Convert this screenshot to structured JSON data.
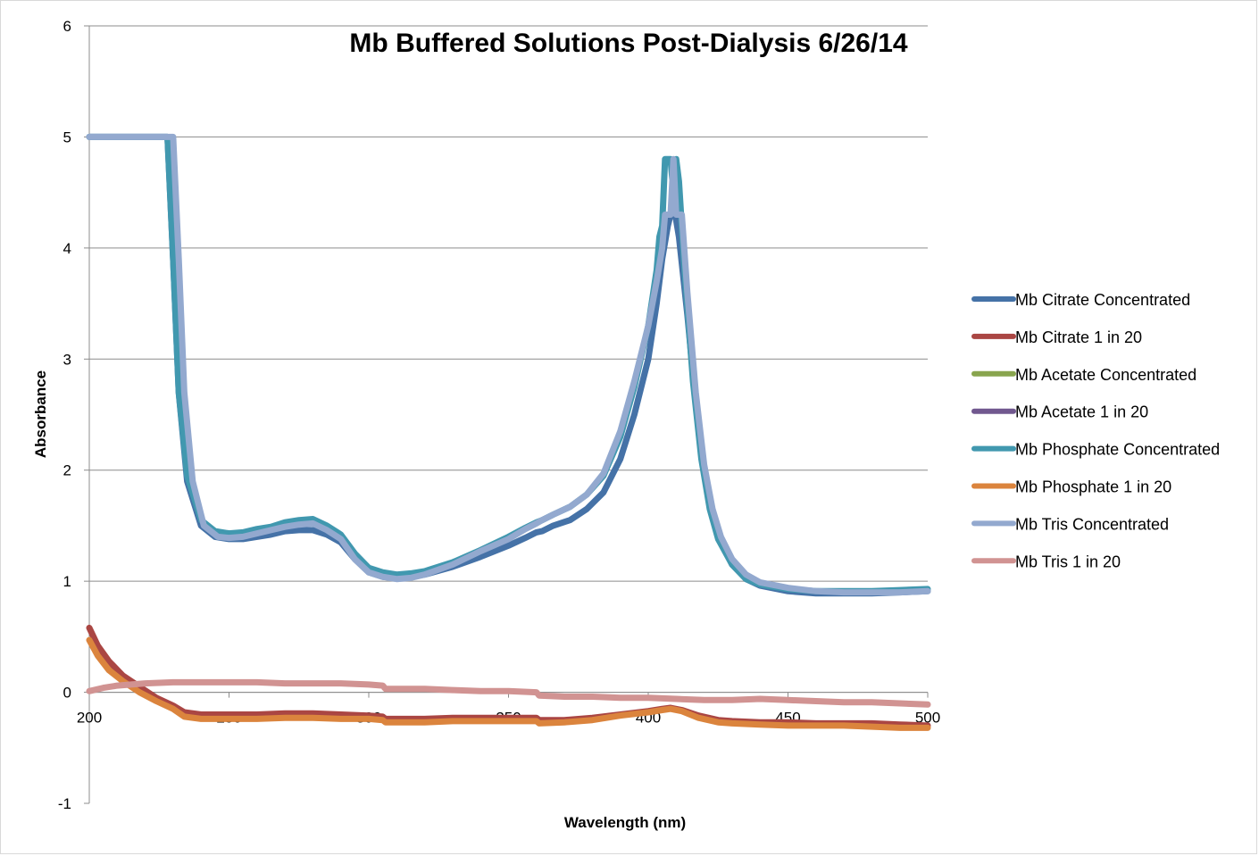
{
  "chart_data": {
    "type": "line",
    "title": "Mb Buffered Solutions Post-Dialysis 6/26/14",
    "xlabel": "Wavelength (nm)",
    "ylabel": "Absorbance",
    "xlim": [
      200,
      500
    ],
    "ylim": [
      -1,
      6
    ],
    "xticks": [
      200,
      250,
      300,
      350,
      400,
      450,
      500
    ],
    "yticks": [
      -1,
      0,
      1,
      2,
      3,
      4,
      5,
      6
    ],
    "grid": true,
    "legend": "right",
    "series": [
      {
        "name": "Mb Citrate Concentrated",
        "color": "#4572A7",
        "points": [
          [
            200,
            5
          ],
          [
            228,
            5
          ],
          [
            230,
            3.9
          ],
          [
            232,
            2.7
          ],
          [
            235,
            1.9
          ],
          [
            240,
            1.5
          ],
          [
            245,
            1.4
          ],
          [
            250,
            1.38
          ],
          [
            255,
            1.38
          ],
          [
            260,
            1.4
          ],
          [
            265,
            1.42
          ],
          [
            270,
            1.45
          ],
          [
            275,
            1.46
          ],
          [
            280,
            1.46
          ],
          [
            285,
            1.42
          ],
          [
            290,
            1.35
          ],
          [
            295,
            1.2
          ],
          [
            300,
            1.08
          ],
          [
            305,
            1.04
          ],
          [
            310,
            1.03
          ],
          [
            315,
            1.04
          ],
          [
            320,
            1.06
          ],
          [
            330,
            1.13
          ],
          [
            340,
            1.22
          ],
          [
            350,
            1.32
          ],
          [
            356,
            1.39
          ],
          [
            360,
            1.44
          ],
          [
            362,
            1.45
          ],
          [
            366,
            1.5
          ],
          [
            372,
            1.55
          ],
          [
            378,
            1.65
          ],
          [
            384,
            1.8
          ],
          [
            390,
            2.1
          ],
          [
            395,
            2.5
          ],
          [
            400,
            3.0
          ],
          [
            403,
            3.5
          ],
          [
            405,
            3.9
          ],
          [
            407,
            4.2
          ],
          [
            409,
            4.4
          ],
          [
            411,
            4.1
          ],
          [
            414,
            3.4
          ],
          [
            417,
            2.6
          ],
          [
            420,
            2.0
          ],
          [
            423,
            1.6
          ],
          [
            426,
            1.35
          ],
          [
            430,
            1.15
          ],
          [
            435,
            1.02
          ],
          [
            440,
            0.96
          ],
          [
            450,
            0.91
          ],
          [
            460,
            0.89
          ],
          [
            470,
            0.89
          ],
          [
            480,
            0.89
          ],
          [
            490,
            0.9
          ],
          [
            500,
            0.91
          ]
        ]
      },
      {
        "name": "Mb Citrate 1 in 20",
        "color": "#AA4643",
        "points": [
          [
            200,
            0.58
          ],
          [
            203,
            0.42
          ],
          [
            207,
            0.28
          ],
          [
            212,
            0.15
          ],
          [
            218,
            0.05
          ],
          [
            224,
            -0.05
          ],
          [
            230,
            -0.12
          ],
          [
            234,
            -0.18
          ],
          [
            240,
            -0.2
          ],
          [
            250,
            -0.2
          ],
          [
            260,
            -0.2
          ],
          [
            270,
            -0.19
          ],
          [
            280,
            -0.19
          ],
          [
            290,
            -0.2
          ],
          [
            300,
            -0.21
          ],
          [
            305,
            -0.22
          ],
          [
            306,
            -0.24
          ],
          [
            320,
            -0.24
          ],
          [
            330,
            -0.23
          ],
          [
            340,
            -0.23
          ],
          [
            350,
            -0.23
          ],
          [
            360,
            -0.23
          ],
          [
            361,
            -0.25
          ],
          [
            370,
            -0.25
          ],
          [
            380,
            -0.23
          ],
          [
            390,
            -0.2
          ],
          [
            400,
            -0.17
          ],
          [
            405,
            -0.15
          ],
          [
            408,
            -0.14
          ],
          [
            412,
            -0.16
          ],
          [
            418,
            -0.21
          ],
          [
            425,
            -0.25
          ],
          [
            430,
            -0.26
          ],
          [
            440,
            -0.27
          ],
          [
            450,
            -0.27
          ],
          [
            460,
            -0.28
          ],
          [
            470,
            -0.28
          ],
          [
            480,
            -0.28
          ],
          [
            490,
            -0.29
          ],
          [
            500,
            -0.3
          ]
        ]
      },
      {
        "name": "Mb Acetate Concentrated",
        "color": "#89A54E",
        "points": []
      },
      {
        "name": "Mb Acetate 1 in 20",
        "color": "#71588F",
        "points": []
      },
      {
        "name": "Mb Phosphate Concentrated",
        "color": "#4198AF",
        "points": [
          [
            200,
            5
          ],
          [
            228,
            5
          ],
          [
            230,
            3.9
          ],
          [
            232,
            2.7
          ],
          [
            235,
            1.95
          ],
          [
            240,
            1.55
          ],
          [
            245,
            1.45
          ],
          [
            250,
            1.43
          ],
          [
            255,
            1.44
          ],
          [
            260,
            1.47
          ],
          [
            265,
            1.49
          ],
          [
            270,
            1.53
          ],
          [
            275,
            1.55
          ],
          [
            280,
            1.56
          ],
          [
            285,
            1.5
          ],
          [
            290,
            1.42
          ],
          [
            295,
            1.25
          ],
          [
            300,
            1.12
          ],
          [
            305,
            1.08
          ],
          [
            310,
            1.06
          ],
          [
            315,
            1.07
          ],
          [
            320,
            1.09
          ],
          [
            330,
            1.17
          ],
          [
            340,
            1.28
          ],
          [
            350,
            1.4
          ],
          [
            356,
            1.48
          ],
          [
            360,
            1.53
          ],
          [
            362,
            1.55
          ],
          [
            366,
            1.6
          ],
          [
            372,
            1.67
          ],
          [
            378,
            1.78
          ],
          [
            384,
            1.95
          ],
          [
            390,
            2.3
          ],
          [
            395,
            2.75
          ],
          [
            400,
            3.3
          ],
          [
            403,
            3.8
          ],
          [
            404,
            4.1
          ],
          [
            405,
            4.2
          ],
          [
            406,
            4.8
          ],
          [
            408,
            4.8
          ],
          [
            409,
            4.5
          ],
          [
            410,
            4.8
          ],
          [
            411,
            4.6
          ],
          [
            413,
            3.8
          ],
          [
            416,
            2.8
          ],
          [
            419,
            2.1
          ],
          [
            422,
            1.65
          ],
          [
            425,
            1.38
          ],
          [
            430,
            1.15
          ],
          [
            435,
            1.02
          ],
          [
            440,
            0.97
          ],
          [
            450,
            0.93
          ],
          [
            460,
            0.91
          ],
          [
            470,
            0.91
          ],
          [
            480,
            0.91
          ],
          [
            490,
            0.92
          ],
          [
            500,
            0.93
          ]
        ]
      },
      {
        "name": "Mb Phosphate 1 in 20",
        "color": "#DB843D",
        "points": [
          [
            200,
            0.47
          ],
          [
            203,
            0.33
          ],
          [
            207,
            0.2
          ],
          [
            212,
            0.1
          ],
          [
            218,
            0.0
          ],
          [
            224,
            -0.08
          ],
          [
            230,
            -0.15
          ],
          [
            234,
            -0.22
          ],
          [
            240,
            -0.24
          ],
          [
            250,
            -0.24
          ],
          [
            260,
            -0.24
          ],
          [
            270,
            -0.23
          ],
          [
            280,
            -0.23
          ],
          [
            290,
            -0.24
          ],
          [
            300,
            -0.24
          ],
          [
            305,
            -0.25
          ],
          [
            306,
            -0.27
          ],
          [
            320,
            -0.27
          ],
          [
            330,
            -0.26
          ],
          [
            340,
            -0.26
          ],
          [
            350,
            -0.26
          ],
          [
            360,
            -0.26
          ],
          [
            361,
            -0.28
          ],
          [
            370,
            -0.27
          ],
          [
            380,
            -0.25
          ],
          [
            390,
            -0.21
          ],
          [
            400,
            -0.18
          ],
          [
            405,
            -0.16
          ],
          [
            408,
            -0.15
          ],
          [
            412,
            -0.17
          ],
          [
            418,
            -0.23
          ],
          [
            425,
            -0.27
          ],
          [
            430,
            -0.28
          ],
          [
            440,
            -0.29
          ],
          [
            450,
            -0.3
          ],
          [
            460,
            -0.3
          ],
          [
            470,
            -0.3
          ],
          [
            480,
            -0.31
          ],
          [
            490,
            -0.32
          ],
          [
            500,
            -0.32
          ]
        ]
      },
      {
        "name": "Mb Tris Concentrated",
        "color": "#93A9CF",
        "points": [
          [
            200,
            5
          ],
          [
            230,
            5
          ],
          [
            232,
            3.9
          ],
          [
            234,
            2.7
          ],
          [
            237,
            1.9
          ],
          [
            241,
            1.5
          ],
          [
            246,
            1.4
          ],
          [
            250,
            1.39
          ],
          [
            255,
            1.4
          ],
          [
            260,
            1.43
          ],
          [
            265,
            1.46
          ],
          [
            270,
            1.49
          ],
          [
            275,
            1.51
          ],
          [
            280,
            1.52
          ],
          [
            285,
            1.46
          ],
          [
            290,
            1.38
          ],
          [
            295,
            1.2
          ],
          [
            300,
            1.08
          ],
          [
            305,
            1.04
          ],
          [
            310,
            1.02
          ],
          [
            315,
            1.03
          ],
          [
            320,
            1.06
          ],
          [
            330,
            1.15
          ],
          [
            340,
            1.27
          ],
          [
            350,
            1.38
          ],
          [
            356,
            1.47
          ],
          [
            360,
            1.52
          ],
          [
            362,
            1.55
          ],
          [
            366,
            1.6
          ],
          [
            372,
            1.67
          ],
          [
            378,
            1.78
          ],
          [
            384,
            1.97
          ],
          [
            390,
            2.35
          ],
          [
            395,
            2.8
          ],
          [
            400,
            3.3
          ],
          [
            403,
            3.7
          ],
          [
            405,
            4.0
          ],
          [
            406,
            4.3
          ],
          [
            408,
            4.3
          ],
          [
            409,
            4.8
          ],
          [
            410,
            4.3
          ],
          [
            412,
            4.3
          ],
          [
            414,
            3.6
          ],
          [
            417,
            2.7
          ],
          [
            420,
            2.05
          ],
          [
            423,
            1.65
          ],
          [
            426,
            1.4
          ],
          [
            430,
            1.2
          ],
          [
            435,
            1.06
          ],
          [
            440,
            0.99
          ],
          [
            450,
            0.94
          ],
          [
            460,
            0.91
          ],
          [
            470,
            0.9
          ],
          [
            480,
            0.9
          ],
          [
            490,
            0.9
          ],
          [
            500,
            0.91
          ]
        ]
      },
      {
        "name": "Mb Tris 1 in 20",
        "color": "#D19392",
        "points": [
          [
            200,
            0.01
          ],
          [
            205,
            0.04
          ],
          [
            210,
            0.06
          ],
          [
            220,
            0.08
          ],
          [
            230,
            0.09
          ],
          [
            240,
            0.09
          ],
          [
            250,
            0.09
          ],
          [
            260,
            0.09
          ],
          [
            270,
            0.08
          ],
          [
            280,
            0.08
          ],
          [
            290,
            0.08
          ],
          [
            300,
            0.07
          ],
          [
            305,
            0.06
          ],
          [
            306,
            0.03
          ],
          [
            320,
            0.03
          ],
          [
            330,
            0.02
          ],
          [
            340,
            0.01
          ],
          [
            350,
            0.01
          ],
          [
            360,
            0.0
          ],
          [
            361,
            -0.03
          ],
          [
            370,
            -0.04
          ],
          [
            380,
            -0.04
          ],
          [
            390,
            -0.05
          ],
          [
            400,
            -0.05
          ],
          [
            410,
            -0.06
          ],
          [
            420,
            -0.07
          ],
          [
            430,
            -0.07
          ],
          [
            440,
            -0.06
          ],
          [
            450,
            -0.07
          ],
          [
            460,
            -0.08
          ],
          [
            470,
            -0.09
          ],
          [
            480,
            -0.09
          ],
          [
            490,
            -0.1
          ],
          [
            500,
            -0.11
          ]
        ]
      }
    ]
  }
}
